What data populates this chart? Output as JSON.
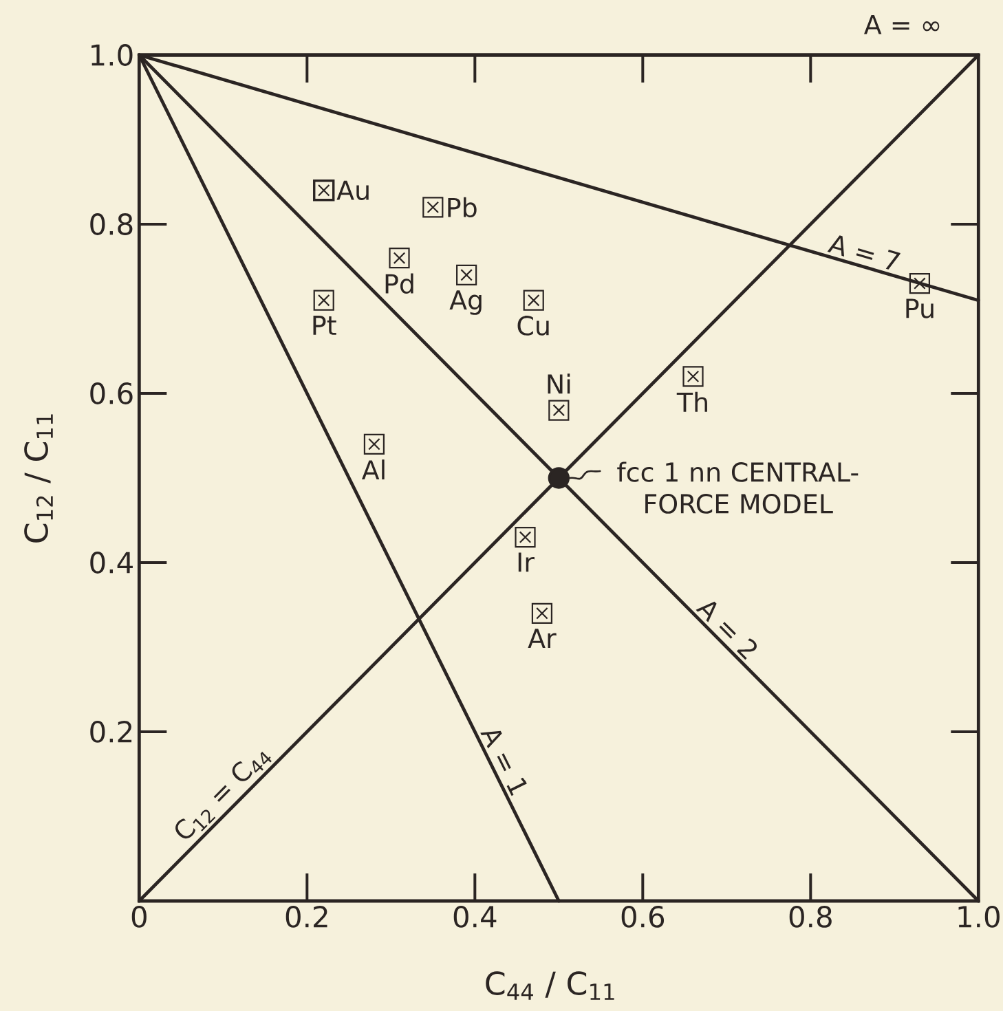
{
  "chart_data": {
    "type": "scatter",
    "xlabel": "C$_{44}$ / C$_{11}$",
    "ylabel": "C$_{12}$ / C$_{11}$",
    "xlim": [
      0,
      1
    ],
    "ylim": [
      0,
      1
    ],
    "xticks": [
      0,
      0.2,
      0.4,
      0.6,
      0.8,
      {
        "value": 1,
        "label": "1.0"
      }
    ],
    "yticks": [
      0.2,
      0.4,
      0.6,
      0.8,
      {
        "value": 1,
        "label": "1.0"
      }
    ],
    "series": [
      {
        "marker": "square",
        "color": "#2b2523",
        "x": [
          0.22,
          0.35,
          0.31,
          0.39,
          0.22,
          0.47,
          0.28,
          0.5,
          0.66,
          0.93,
          0.46,
          0.48
        ],
        "values": [
          0.84,
          0.82,
          0.76,
          0.74,
          0.71,
          0.71,
          0.54,
          0.58,
          0.62,
          0.73,
          0.43,
          0.34
        ]
      },
      {
        "marker": "circle",
        "color": "#2b2523",
        "x": [
          0.5
        ],
        "values": [
          0.5
        ]
      },
      {
        "type": "line",
        "name": "A = 1",
        "color": "#2b2523",
        "x": [
          0,
          0.5
        ],
        "values": [
          1,
          0
        ]
      },
      {
        "type": "line",
        "name": "A = 2",
        "color": "#2b2523",
        "x": [
          0,
          1
        ],
        "values": [
          1,
          0
        ]
      },
      {
        "type": "line",
        "name": "A = 7",
        "color": "#2b2523",
        "x": [
          0,
          1
        ],
        "values": [
          1,
          0.71
        ]
      },
      {
        "type": "line",
        "name": "A = ∞",
        "color": "#2b2523",
        "x": [
          0,
          1
        ],
        "values": [
          1,
          1
        ]
      },
      {
        "type": "line",
        "name": "C$_{12}$ = C$_{44}$",
        "color": "#2b2523",
        "x": [
          0,
          1
        ],
        "values": [
          0,
          1
        ]
      }
    ],
    "annotations": [
      {
        "text": "Au",
        "x": 0.22,
        "y": 0.84
      },
      {
        "text": "Pb",
        "x": 0.35,
        "y": 0.82
      },
      {
        "text": "Pd",
        "x": 0.31,
        "y": 0.76
      },
      {
        "text": "Ag",
        "x": 0.39,
        "y": 0.74
      },
      {
        "text": "Pt",
        "x": 0.22,
        "y": 0.71
      },
      {
        "text": "Cu",
        "x": 0.47,
        "y": 0.71
      },
      {
        "text": "Al",
        "x": 0.28,
        "y": 0.54
      },
      {
        "text": "Ni",
        "x": 0.5,
        "y": 0.58
      },
      {
        "text": "Th",
        "x": 0.66,
        "y": 0.62
      },
      {
        "text": "Pu",
        "x": 0.93,
        "y": 0.73
      },
      {
        "text": "Ir",
        "x": 0.46,
        "y": 0.43
      },
      {
        "text": "Ar",
        "x": 0.48,
        "y": 0.34
      },
      {
        "text": "fcc 1 nn CENTRAL-FORCE MODEL",
        "x": 0.5,
        "y": 0.5
      }
    ]
  }
}
